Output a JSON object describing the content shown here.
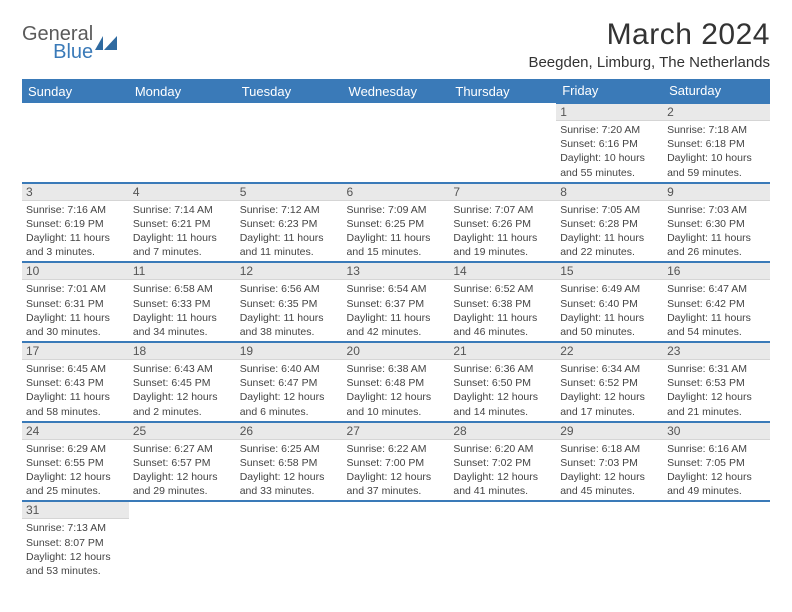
{
  "logo": {
    "line1": "General",
    "line2": "Blue"
  },
  "title": "March 2024",
  "location": "Beegden, Limburg, The Netherlands",
  "colors": {
    "header_bg": "#3a7ab8",
    "header_fg": "#ffffff",
    "daynum_bg": "#e9e9e9",
    "row_border": "#3a7ab8",
    "text": "#444444"
  },
  "day_headers": [
    "Sunday",
    "Monday",
    "Tuesday",
    "Wednesday",
    "Thursday",
    "Friday",
    "Saturday"
  ],
  "weeks": [
    [
      null,
      null,
      null,
      null,
      null,
      {
        "n": "1",
        "sr": "Sunrise: 7:20 AM",
        "ss": "Sunset: 6:16 PM",
        "dl": "Daylight: 10 hours and 55 minutes."
      },
      {
        "n": "2",
        "sr": "Sunrise: 7:18 AM",
        "ss": "Sunset: 6:18 PM",
        "dl": "Daylight: 10 hours and 59 minutes."
      }
    ],
    [
      {
        "n": "3",
        "sr": "Sunrise: 7:16 AM",
        "ss": "Sunset: 6:19 PM",
        "dl": "Daylight: 11 hours and 3 minutes."
      },
      {
        "n": "4",
        "sr": "Sunrise: 7:14 AM",
        "ss": "Sunset: 6:21 PM",
        "dl": "Daylight: 11 hours and 7 minutes."
      },
      {
        "n": "5",
        "sr": "Sunrise: 7:12 AM",
        "ss": "Sunset: 6:23 PM",
        "dl": "Daylight: 11 hours and 11 minutes."
      },
      {
        "n": "6",
        "sr": "Sunrise: 7:09 AM",
        "ss": "Sunset: 6:25 PM",
        "dl": "Daylight: 11 hours and 15 minutes."
      },
      {
        "n": "7",
        "sr": "Sunrise: 7:07 AM",
        "ss": "Sunset: 6:26 PM",
        "dl": "Daylight: 11 hours and 19 minutes."
      },
      {
        "n": "8",
        "sr": "Sunrise: 7:05 AM",
        "ss": "Sunset: 6:28 PM",
        "dl": "Daylight: 11 hours and 22 minutes."
      },
      {
        "n": "9",
        "sr": "Sunrise: 7:03 AM",
        "ss": "Sunset: 6:30 PM",
        "dl": "Daylight: 11 hours and 26 minutes."
      }
    ],
    [
      {
        "n": "10",
        "sr": "Sunrise: 7:01 AM",
        "ss": "Sunset: 6:31 PM",
        "dl": "Daylight: 11 hours and 30 minutes."
      },
      {
        "n": "11",
        "sr": "Sunrise: 6:58 AM",
        "ss": "Sunset: 6:33 PM",
        "dl": "Daylight: 11 hours and 34 minutes."
      },
      {
        "n": "12",
        "sr": "Sunrise: 6:56 AM",
        "ss": "Sunset: 6:35 PM",
        "dl": "Daylight: 11 hours and 38 minutes."
      },
      {
        "n": "13",
        "sr": "Sunrise: 6:54 AM",
        "ss": "Sunset: 6:37 PM",
        "dl": "Daylight: 11 hours and 42 minutes."
      },
      {
        "n": "14",
        "sr": "Sunrise: 6:52 AM",
        "ss": "Sunset: 6:38 PM",
        "dl": "Daylight: 11 hours and 46 minutes."
      },
      {
        "n": "15",
        "sr": "Sunrise: 6:49 AM",
        "ss": "Sunset: 6:40 PM",
        "dl": "Daylight: 11 hours and 50 minutes."
      },
      {
        "n": "16",
        "sr": "Sunrise: 6:47 AM",
        "ss": "Sunset: 6:42 PM",
        "dl": "Daylight: 11 hours and 54 minutes."
      }
    ],
    [
      {
        "n": "17",
        "sr": "Sunrise: 6:45 AM",
        "ss": "Sunset: 6:43 PM",
        "dl": "Daylight: 11 hours and 58 minutes."
      },
      {
        "n": "18",
        "sr": "Sunrise: 6:43 AM",
        "ss": "Sunset: 6:45 PM",
        "dl": "Daylight: 12 hours and 2 minutes."
      },
      {
        "n": "19",
        "sr": "Sunrise: 6:40 AM",
        "ss": "Sunset: 6:47 PM",
        "dl": "Daylight: 12 hours and 6 minutes."
      },
      {
        "n": "20",
        "sr": "Sunrise: 6:38 AM",
        "ss": "Sunset: 6:48 PM",
        "dl": "Daylight: 12 hours and 10 minutes."
      },
      {
        "n": "21",
        "sr": "Sunrise: 6:36 AM",
        "ss": "Sunset: 6:50 PM",
        "dl": "Daylight: 12 hours and 14 minutes."
      },
      {
        "n": "22",
        "sr": "Sunrise: 6:34 AM",
        "ss": "Sunset: 6:52 PM",
        "dl": "Daylight: 12 hours and 17 minutes."
      },
      {
        "n": "23",
        "sr": "Sunrise: 6:31 AM",
        "ss": "Sunset: 6:53 PM",
        "dl": "Daylight: 12 hours and 21 minutes."
      }
    ],
    [
      {
        "n": "24",
        "sr": "Sunrise: 6:29 AM",
        "ss": "Sunset: 6:55 PM",
        "dl": "Daylight: 12 hours and 25 minutes."
      },
      {
        "n": "25",
        "sr": "Sunrise: 6:27 AM",
        "ss": "Sunset: 6:57 PM",
        "dl": "Daylight: 12 hours and 29 minutes."
      },
      {
        "n": "26",
        "sr": "Sunrise: 6:25 AM",
        "ss": "Sunset: 6:58 PM",
        "dl": "Daylight: 12 hours and 33 minutes."
      },
      {
        "n": "27",
        "sr": "Sunrise: 6:22 AM",
        "ss": "Sunset: 7:00 PM",
        "dl": "Daylight: 12 hours and 37 minutes."
      },
      {
        "n": "28",
        "sr": "Sunrise: 6:20 AM",
        "ss": "Sunset: 7:02 PM",
        "dl": "Daylight: 12 hours and 41 minutes."
      },
      {
        "n": "29",
        "sr": "Sunrise: 6:18 AM",
        "ss": "Sunset: 7:03 PM",
        "dl": "Daylight: 12 hours and 45 minutes."
      },
      {
        "n": "30",
        "sr": "Sunrise: 6:16 AM",
        "ss": "Sunset: 7:05 PM",
        "dl": "Daylight: 12 hours and 49 minutes."
      }
    ],
    [
      {
        "n": "31",
        "sr": "Sunrise: 7:13 AM",
        "ss": "Sunset: 8:07 PM",
        "dl": "Daylight: 12 hours and 53 minutes."
      },
      null,
      null,
      null,
      null,
      null,
      null
    ]
  ]
}
